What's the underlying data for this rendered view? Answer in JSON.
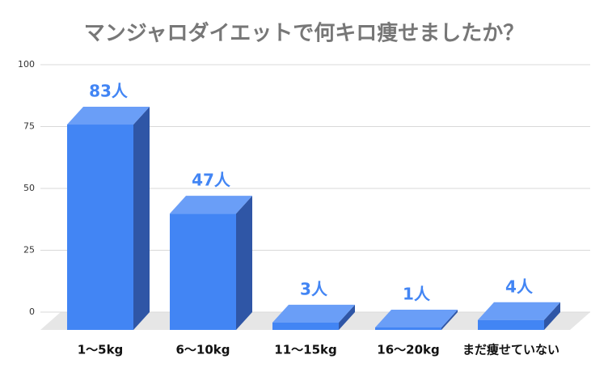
{
  "chart_data": {
    "type": "bar3d",
    "title": "マンジャロダイエットで何キロ痩せましたか？",
    "categories": [
      "1〜5kg",
      "6〜10kg",
      "11〜15kg",
      "16〜20kg",
      "まだ痩せていない"
    ],
    "values": [
      83,
      47,
      3,
      1,
      4
    ],
    "value_labels": [
      "83人",
      "47人",
      "3人",
      "1人",
      "4人"
    ],
    "color": "#4285f4",
    "ylim": [
      0,
      100
    ],
    "yticks": [
      0,
      25,
      50,
      75,
      100
    ],
    "grid": true
  }
}
